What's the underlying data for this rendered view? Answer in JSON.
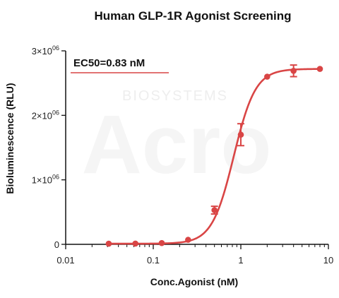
{
  "chart_data": {
    "type": "scatter",
    "title": "Human GLP-1R Agonist Screening",
    "xlabel": "Conc.Agonist (nM)",
    "ylabel": "Bioluminescence (RLU)",
    "x_scale": "log",
    "xlim": [
      0.01,
      10
    ],
    "ylim": [
      0,
      3000000
    ],
    "x_ticks": [
      {
        "value": 0.01,
        "label": "0.01"
      },
      {
        "value": 0.1,
        "label": "0.1"
      },
      {
        "value": 1,
        "label": "1"
      },
      {
        "value": 10,
        "label": "10"
      }
    ],
    "y_ticks": [
      {
        "value": 0,
        "label": "0",
        "sup": ""
      },
      {
        "value": 1000000,
        "label": "1×10",
        "sup": "06"
      },
      {
        "value": 2000000,
        "label": "2×10",
        "sup": "06"
      },
      {
        "value": 3000000,
        "label": "3×10",
        "sup": "06"
      }
    ],
    "annotation": "EC50=0.83 nM",
    "series": [
      {
        "color": "#d94545",
        "points": [
          {
            "x": 0.031,
            "y": 10000,
            "err": 0
          },
          {
            "x": 0.0625,
            "y": 12000,
            "err": 0
          },
          {
            "x": 0.125,
            "y": 20000,
            "err": 0
          },
          {
            "x": 0.25,
            "y": 70000,
            "err": 0
          },
          {
            "x": 0.5,
            "y": 530000,
            "err": 60000
          },
          {
            "x": 1,
            "y": 1700000,
            "err": 170000
          },
          {
            "x": 2,
            "y": 2600000,
            "err": 0
          },
          {
            "x": 4,
            "y": 2690000,
            "err": 90000
          },
          {
            "x": 8,
            "y": 2720000,
            "err": 0
          }
        ],
        "fit": {
          "model": "4PL",
          "bottom": 10000,
          "top": 2720000,
          "ec50": 0.83,
          "hill": 3.5
        }
      }
    ],
    "watermark": {
      "text": "BIOSYSTEMS",
      "logo": "Acro"
    }
  }
}
